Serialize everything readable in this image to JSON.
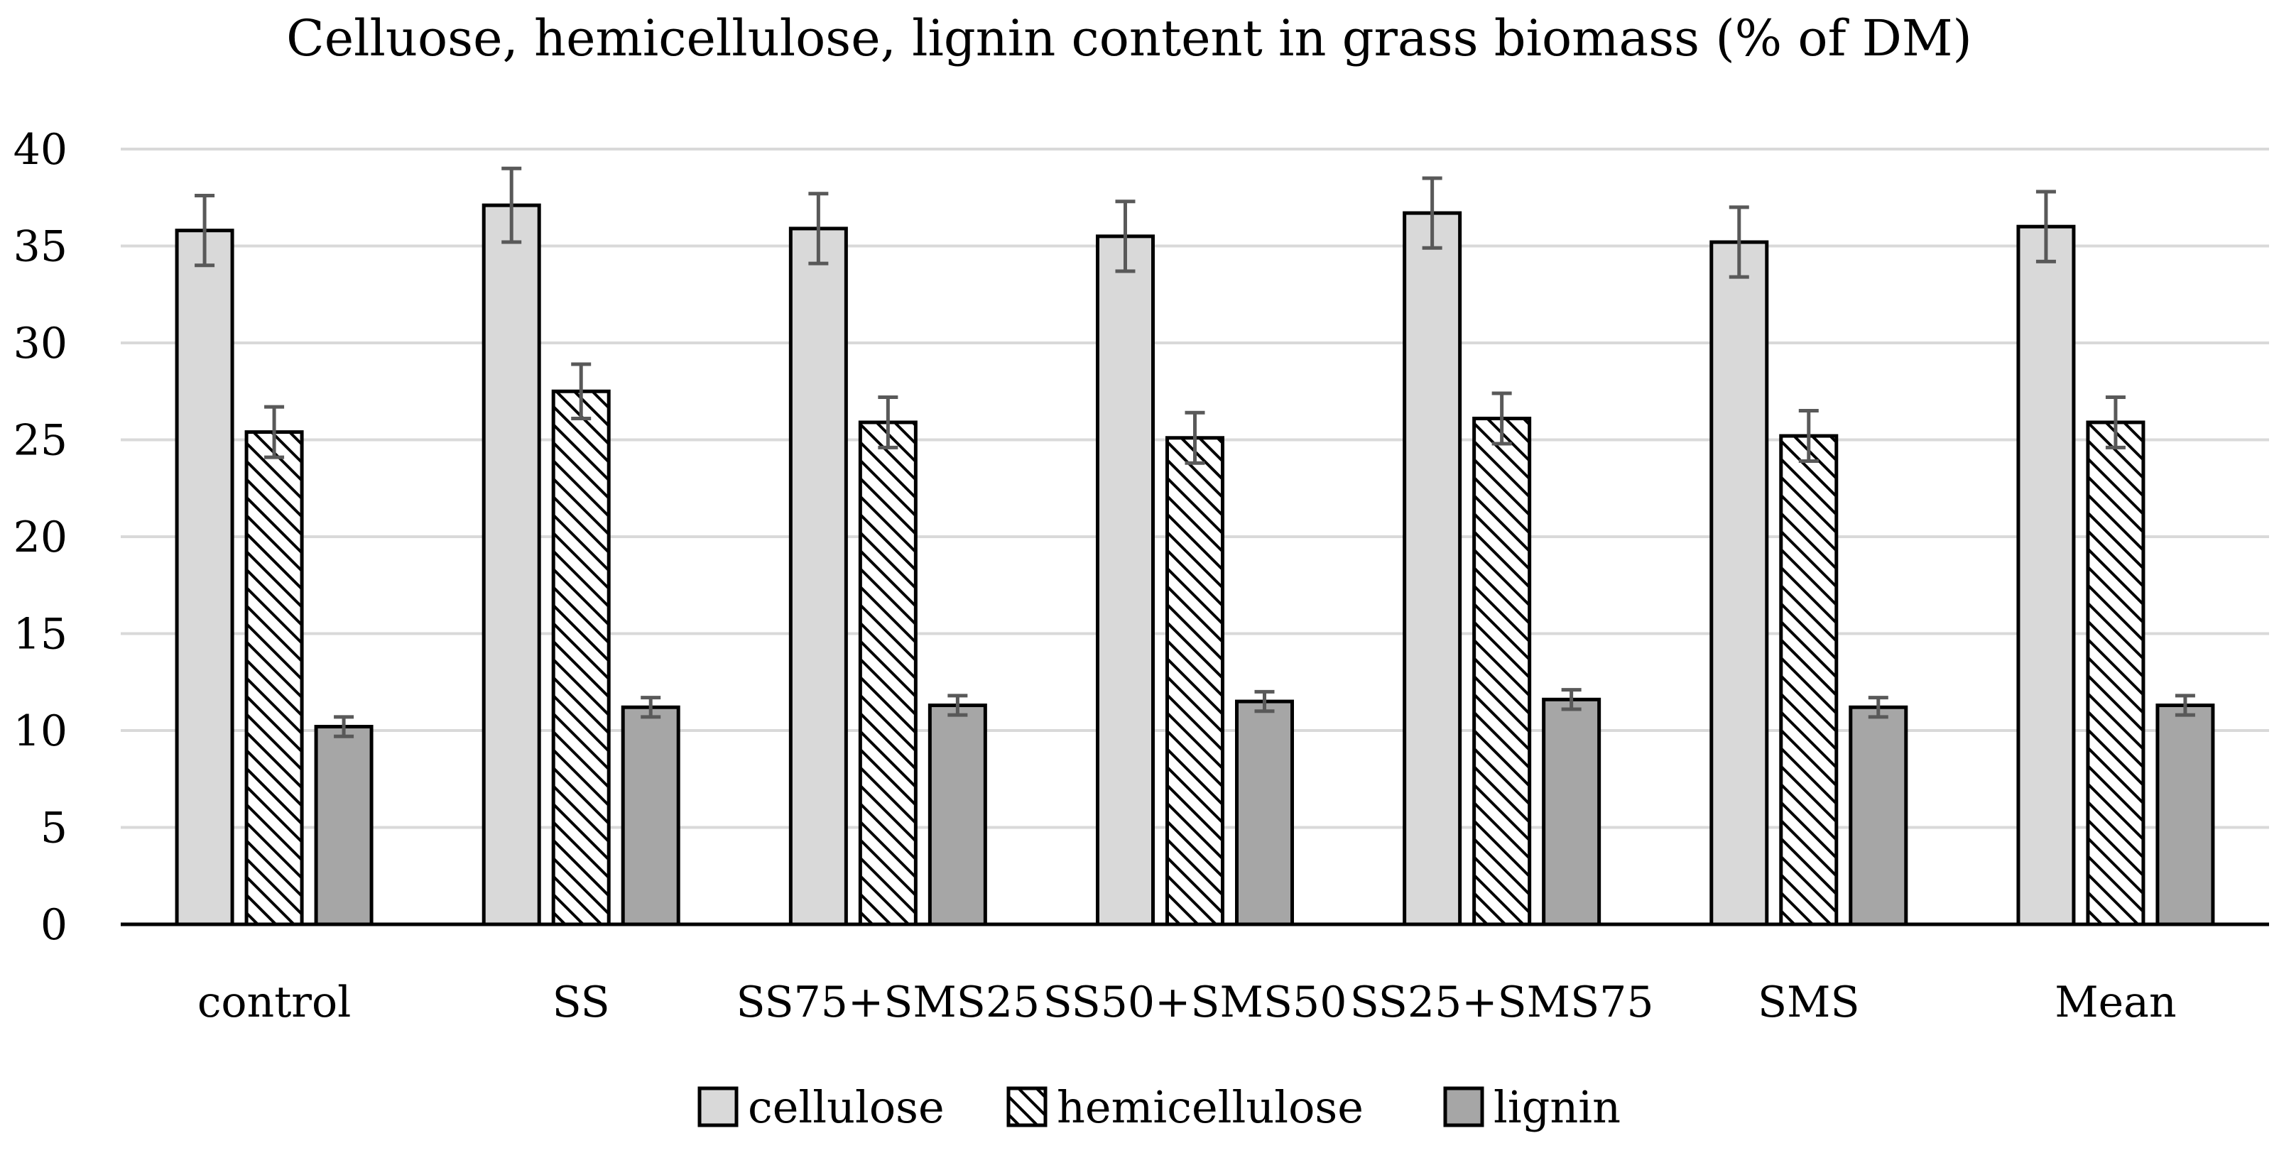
{
  "chart_data": {
    "type": "bar",
    "title": "Celluose, hemicellulose, lignin content in grass biomass (% of DM)",
    "xlabel": "",
    "ylabel": "",
    "ylim": [
      0,
      40
    ],
    "yticks": [
      "0",
      "5",
      "10",
      "15",
      "20",
      "25",
      "30",
      "35",
      "40"
    ],
    "grid": true,
    "legend": "bottom",
    "categories": [
      "control",
      "SS",
      "SS75+SMS25",
      "SS50+SMS50",
      "SS25+SMS75",
      "SMS",
      "Mean"
    ],
    "series": [
      {
        "name": "cellulose",
        "values": [
          35.8,
          37.1,
          35.9,
          35.5,
          36.7,
          35.2,
          36.0
        ],
        "errors": [
          1.8,
          1.9,
          1.8,
          1.8,
          1.8,
          1.8,
          1.8
        ],
        "fill": "#d9d9d9",
        "pattern": "solid"
      },
      {
        "name": "hemicellulose",
        "values": [
          25.4,
          27.5,
          25.9,
          25.1,
          26.1,
          25.2,
          25.9
        ],
        "errors": [
          1.3,
          1.4,
          1.3,
          1.3,
          1.3,
          1.3,
          1.3
        ],
        "fill": "#ffffff",
        "pattern": "diagonal-hatch"
      },
      {
        "name": "lignin",
        "values": [
          10.2,
          11.2,
          11.3,
          11.5,
          11.6,
          11.2,
          11.3
        ],
        "errors": [
          0.5,
          0.5,
          0.5,
          0.5,
          0.5,
          0.5,
          0.5
        ],
        "fill": "#a6a6a6",
        "pattern": "solid"
      }
    ]
  }
}
